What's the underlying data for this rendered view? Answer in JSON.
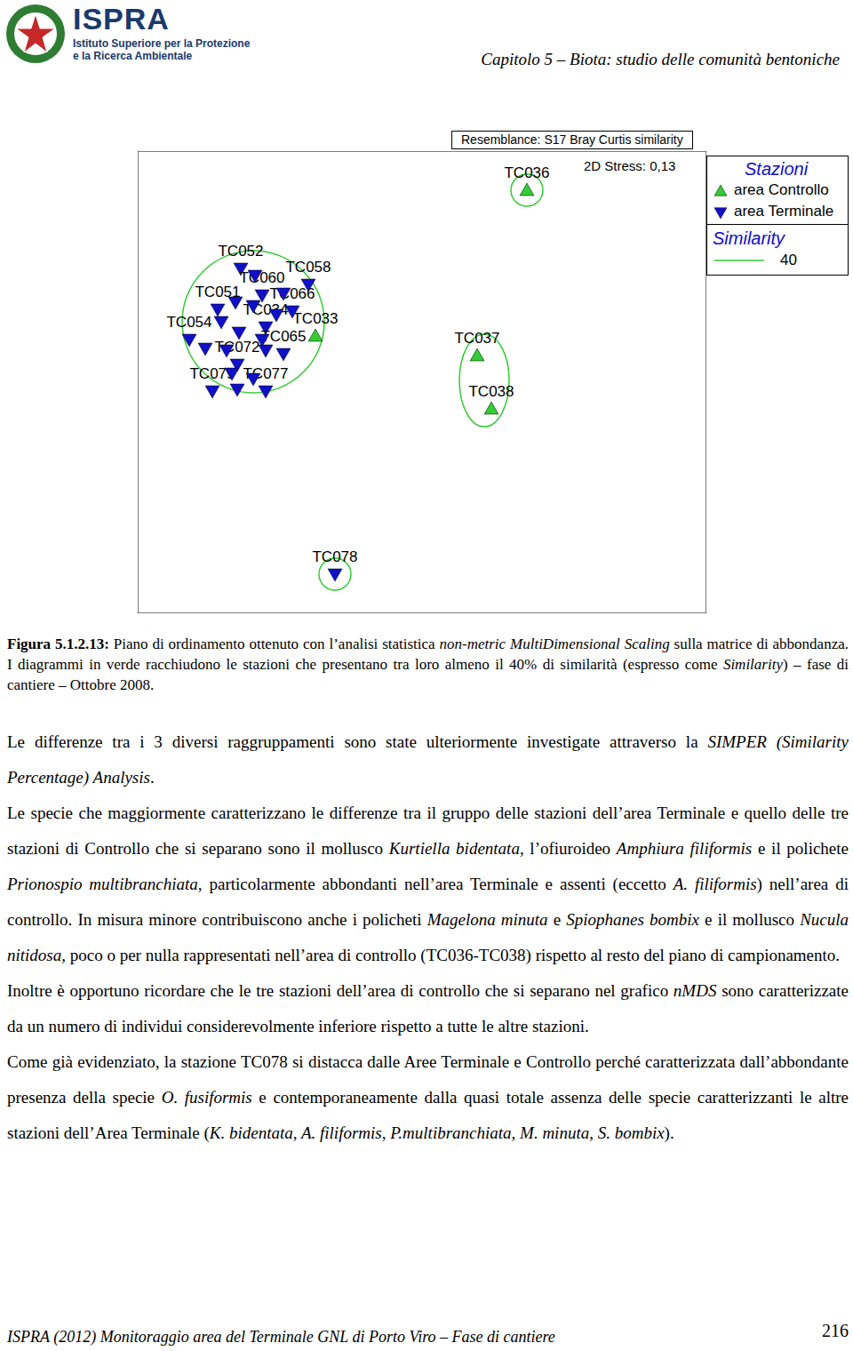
{
  "header": {
    "logo_title": "ISPRA",
    "logo_subtitle": [
      "Istituto Superiore per la Protezione",
      "e la Ricerca Ambientale"
    ],
    "chapter": "Capitolo 5 – Biota: studio delle comunità bentoniche"
  },
  "chart_data": {
    "type": "scatter",
    "title": "Resemblance: S17 Bray Curtis similarity",
    "annotations": [
      "2D Stress: 0,13"
    ],
    "legend_title": "Stazioni",
    "tick_labels": false,
    "xlim": [
      -1.6,
      1.6
    ],
    "ylim": [
      -1.3,
      1.3
    ],
    "series": [
      {
        "name": "area Controllo",
        "color": "#33cc33",
        "marker": "triangle-up",
        "labels": [
          "TC036",
          "TC037",
          "TC038",
          "TC033"
        ],
        "x": [
          0.59,
          0.31,
          0.39,
          -0.6
        ],
        "y": [
          1.08,
          0.15,
          -0.15,
          0.26
        ]
      },
      {
        "name": "area Terminale",
        "color": "#1010c8",
        "marker": "triangle-down",
        "labels": [
          "TC052",
          "TC058",
          "TC060",
          "TC051",
          "TC066",
          "TC054",
          "TC034",
          "TC065",
          "TC072",
          "TC079",
          "TC077",
          "TC078",
          null,
          null,
          null,
          null,
          null,
          null,
          null,
          null,
          null,
          null,
          null,
          null,
          null,
          null
        ],
        "x": [
          -1.02,
          -0.64,
          -0.9,
          -1.15,
          -0.73,
          -1.31,
          -0.88,
          -0.78,
          -1.04,
          -1.18,
          -0.88,
          -0.49,
          -1.05,
          -0.95,
          -1.13,
          -1.03,
          -0.9,
          -1.1,
          -1.22,
          -0.82,
          -1.07,
          -0.95,
          -1.04,
          -0.88,
          -0.78,
          -0.94
        ],
        "y": [
          0.64,
          0.55,
          0.49,
          0.41,
          0.4,
          0.24,
          0.31,
          0.16,
          0.1,
          -0.05,
          -0.05,
          -1.08,
          0.45,
          0.43,
          0.34,
          0.28,
          0.24,
          0.18,
          0.19,
          0.38,
          0.05,
          0.02,
          -0.04,
          0.18,
          0.5,
          0.6
        ]
      }
    ],
    "similarity_legend": {
      "title": "Similarity",
      "value": 40,
      "color": "#33cc33"
    },
    "clusters": [
      {
        "x": -0.95,
        "y": 0.34,
        "rx": 0.4,
        "ry": 0.4
      },
      {
        "x": 0.35,
        "y": 0.01,
        "rx": 0.14,
        "ry": 0.26
      },
      {
        "x": 0.59,
        "y": 1.08,
        "rx": 0.09,
        "ry": 0.09
      },
      {
        "x": -0.49,
        "y": -1.08,
        "rx": 0.09,
        "ry": 0.09
      }
    ]
  },
  "caption": [
    {
      "text": "Figura 5.1.2.13:",
      "bold": true
    },
    {
      "text": " Piano di ordinamento ottenuto con l’analisi statistica "
    },
    {
      "text": "non-metric MultiDimensional Scaling",
      "italic": true
    },
    {
      "text": " sulla matrice di abbondanza. I diagrammi in verde racchiudono le stazioni che presentano tra loro almeno il 40% di similarità (espresso come "
    },
    {
      "text": "Similarity",
      "italic": true
    },
    {
      "text": ") – fase di cantiere – Ottobre 2008."
    }
  ],
  "paragraphs": [
    [
      {
        "text": "Le differenze tra i 3 diversi raggruppamenti sono state ulteriormente investigate attraverso la "
      },
      {
        "text": "SIMPER (Similarity Percentage) Analysis",
        "italic": true
      },
      {
        "text": "."
      }
    ],
    [
      {
        "text": "Le specie che maggiormente caratterizzano le differenze tra il gruppo delle stazioni dell’area Terminale e quello delle tre stazioni di Controllo che si separano sono il mollusco "
      },
      {
        "text": "Kurtiella bidentata",
        "italic": true
      },
      {
        "text": ", l’ofiuroideo "
      },
      {
        "text": "Amphiura filiformis",
        "italic": true
      },
      {
        "text": " e il polichete "
      },
      {
        "text": "Prionospio multibranchiata",
        "italic": true
      },
      {
        "text": ", particolarmente abbondanti nell’area Terminale e assenti (eccetto "
      },
      {
        "text": "A. filiformis",
        "italic": true
      },
      {
        "text": ") nell’area di controllo. In misura minore contribuiscono anche i policheti "
      },
      {
        "text": "Magelona minuta",
        "italic": true
      },
      {
        "text": " e "
      },
      {
        "text": "Spiophanes bombix",
        "italic": true
      },
      {
        "text": " e il mollusco "
      },
      {
        "text": "Nucula nitidosa,",
        "italic": true
      },
      {
        "text": " poco o per nulla rappresentati nell’area di controllo (TC036-TC038) rispetto al resto del piano di campionamento."
      }
    ],
    [
      {
        "text": "Inoltre è opportuno ricordare che le tre stazioni dell’area di controllo che si separano nel grafico "
      },
      {
        "text": "nMDS",
        "italic": true
      },
      {
        "text": " sono caratterizzate da un numero di individui considerevolmente inferiore rispetto a tutte le altre stazioni."
      }
    ],
    [
      {
        "text": "Come già evidenziato, la stazione TC078 si distacca dalle Aree Terminale e Controllo perché caratterizzata dall’abbondante presenza della specie "
      },
      {
        "text": "O. fusiformis",
        "italic": true
      },
      {
        "text": " e contemporaneamente dalla quasi totale assenza delle specie caratterizzanti le altre stazioni dell’Area Terminale ("
      },
      {
        "text": "K. bidentata, A. filiformis, P.multibranchiata, M. minuta, S. bombix",
        "italic": true
      },
      {
        "text": ")."
      }
    ]
  ],
  "footer": {
    "text": "ISPRA (2012) Monitoraggio area del Terminale GNL di Porto Viro – Fase di cantiere",
    "page": 216
  }
}
